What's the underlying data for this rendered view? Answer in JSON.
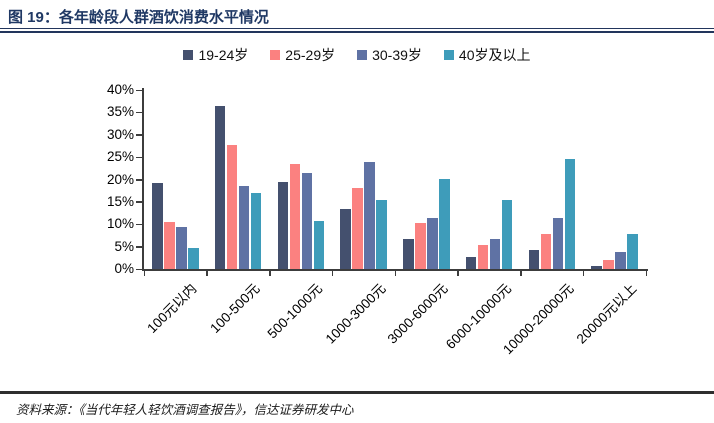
{
  "header": {
    "title": "图 19：各年龄段人群酒饮消费水平情况"
  },
  "footer": {
    "source": "资料来源：《当代年轻人轻饮酒调查报告》，信达证券研发中心"
  },
  "colors": {
    "title_navy": "#1f3864",
    "axis": "#3c3c3c",
    "series_navy": "#44506e",
    "series_salmon": "#fb8180",
    "series_slate": "#5f72a4",
    "series_teal": "#3e9cba"
  },
  "chart_data": {
    "type": "bar",
    "title": "各年龄段人群酒饮消费水平情况",
    "xlabel": "",
    "ylabel": "",
    "ylim": [
      0,
      40
    ],
    "ytick_step": 5,
    "ytick_suffix": "%",
    "yticks": [
      "0%",
      "5%",
      "10%",
      "15%",
      "20%",
      "25%",
      "30%",
      "35%",
      "40%"
    ],
    "grid": false,
    "legend_position": "top",
    "categories": [
      "100元以内",
      "100-500元",
      "500-1000元",
      "1000-3000元",
      "3000-6000元",
      "6000-10000元",
      "10000-20000元",
      "20000元以上"
    ],
    "series": [
      {
        "name": "19-24岁",
        "color": "#44506e",
        "values": [
          19.2,
          36.5,
          19.4,
          13.5,
          6.7,
          2.6,
          4.2,
          0.6
        ]
      },
      {
        "name": "25-29岁",
        "color": "#fb8180",
        "values": [
          10.4,
          27.8,
          23.4,
          18.1,
          10.2,
          5.4,
          7.9,
          2.1
        ]
      },
      {
        "name": "30-39岁",
        "color": "#5f72a4",
        "values": [
          9.4,
          18.6,
          21.5,
          23.8,
          11.5,
          6.7,
          11.5,
          3.9
        ]
      },
      {
        "name": "40岁及以上",
        "color": "#3e9cba",
        "values": [
          4.6,
          17.0,
          10.8,
          15.5,
          20.1,
          15.4,
          24.6,
          7.8
        ]
      }
    ]
  }
}
